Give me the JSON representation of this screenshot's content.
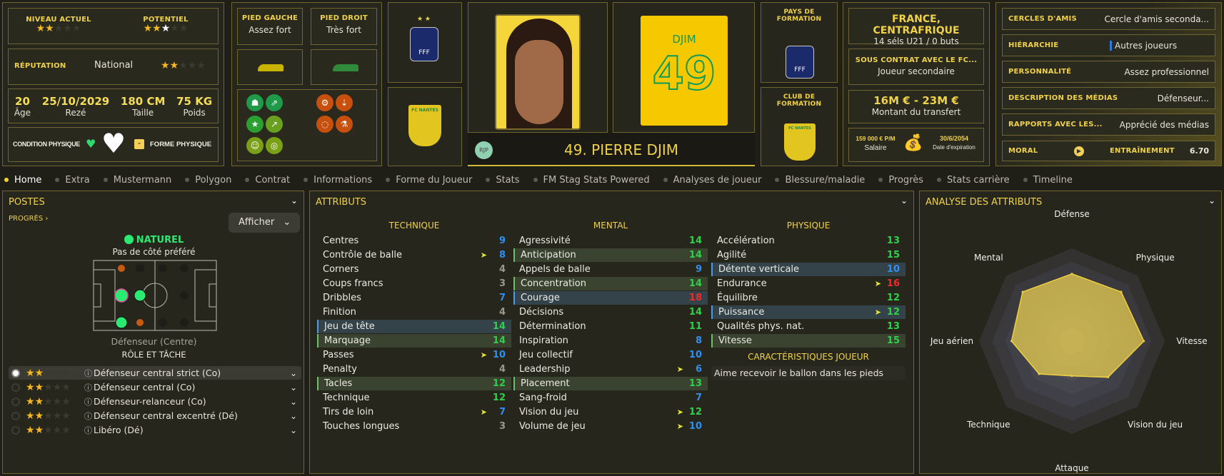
{
  "overview": {
    "current_ability_label": "NIVEAU ACTUEL",
    "current_ability_stars": 2,
    "potential_label": "POTENTIEL",
    "potential_stars": 2,
    "potential_stars_max": 3,
    "reputation_label": "RÉPUTATION",
    "reputation_value": "National",
    "reputation_stars": 1.5,
    "age": "20",
    "age_label": "Âge",
    "birth_date": "25/10/2029",
    "birth_place": "Rezé",
    "height": "180 CM",
    "height_label": "Taille",
    "weight": "75 KG",
    "weight_label": "Poids",
    "condition_label": "CONDITION PHYSIQUE",
    "form_label": "FORME PHYSIQUE"
  },
  "feet": {
    "left_label": "PIED GAUCHE",
    "left_value": "Assez fort",
    "right_label": "PIED DROIT",
    "right_value": "Très fort"
  },
  "traits": {
    "positive_icons": [
      "shield-icon",
      "arrows-icon",
      "star-icon",
      "trend-up-icon",
      "brain-icon",
      "target-icon"
    ],
    "negative_icons": [
      "gear-icon",
      "cone-down-icon",
      "cone-target-icon",
      "flask-icon"
    ]
  },
  "player": {
    "name": "49. PIERRE DJIM",
    "initials": "RJP",
    "shirt_name": "DJIM",
    "shirt_number": "49"
  },
  "formation": {
    "country_label": "PAYS DE FORMATION",
    "club_label": "CLUB DE FORMATION",
    "fff_text": "FFF",
    "club_text": "FC NANTES"
  },
  "nationality": {
    "countries": "FRANCE, CENTRAFRIQUE",
    "caps": "14 séls U21 / 0 buts",
    "contract_label": "SOUS CONTRAT AVEC LE FC...",
    "contract_role": "Joueur secondaire",
    "value": "16M € - 23M €",
    "value_label": "Montant du transfert",
    "wage": "159 000 € P/M",
    "wage_label": "Salaire",
    "expiry": "30/6/2054",
    "expiry_label": "Date d'expiration"
  },
  "personal": [
    {
      "label": "CERCLES D'AMIS",
      "value": "Cercle d'amis seconda..."
    },
    {
      "label": "HIÉRARCHIE",
      "value": "Autres joueurs"
    },
    {
      "label": "PERSONNALITÉ",
      "value": "Assez professionnel"
    },
    {
      "label": "DESCRIPTION DES MÉDIAS",
      "value": "Défenseur..."
    },
    {
      "label": "RAPPORTS AVEC LES...",
      "value": "Apprécié des médias"
    }
  ],
  "morale": {
    "label": "MORAL",
    "training_label": "ENTRAÎNEMENT",
    "training_value": "6.70"
  },
  "tabs": [
    "Home",
    "Extra",
    "Mustermann",
    "Polygon",
    "Contrat",
    "Informations",
    "Forme du Joueur",
    "Stats",
    "FM Stag Stats Powered",
    "Analyses de joueur",
    "Blessure/maladie",
    "Progrès",
    "Stats carrière",
    "Timeline"
  ],
  "positions": {
    "title": "POSTES",
    "progress_link": "PROGRÈS",
    "show_button": "Afficher",
    "natural_label": "NATUREL",
    "side": "Pas de côté préféré",
    "position_name": "Défenseur (Centre)",
    "roles_title": "RÔLE ET TÂCHE",
    "roles": [
      {
        "name": "Défenseur central strict (Co)",
        "stars": 2,
        "selected": true
      },
      {
        "name": "Défenseur central (Co)",
        "stars": 2
      },
      {
        "name": "Défenseur-relanceur (Co)",
        "stars": 2
      },
      {
        "name": "Défenseur central excentré (Dé)",
        "stars": 2
      },
      {
        "name": "Libéro (Dé)",
        "stars": 2
      }
    ]
  },
  "attributes": {
    "title": "ATTRIBUTS",
    "traits_title": "CARACTÉRISTIQUES JOUEUR",
    "traits": [
      "Aime recevoir le ballon dans les pieds"
    ],
    "columns": [
      {
        "title": "TECHNIQUE",
        "items": [
          {
            "n": "Centres",
            "v": 9
          },
          {
            "n": "Contrôle de balle",
            "v": 8,
            "arrow": true
          },
          {
            "n": "Corners",
            "v": 4
          },
          {
            "n": "Coups francs",
            "v": 3
          },
          {
            "n": "Dribbles",
            "v": 7
          },
          {
            "n": "Finition",
            "v": 4
          },
          {
            "n": "Jeu de tête",
            "v": 14,
            "hl": "blue"
          },
          {
            "n": "Marquage",
            "v": 14,
            "hl": "green"
          },
          {
            "n": "Passes",
            "v": 10,
            "arrow": true
          },
          {
            "n": "Penalty",
            "v": 4
          },
          {
            "n": "Tacles",
            "v": 12,
            "hl": "green"
          },
          {
            "n": "Technique",
            "v": 12
          },
          {
            "n": "Tirs de loin",
            "v": 7,
            "arrow": true
          },
          {
            "n": "Touches longues",
            "v": 3
          }
        ]
      },
      {
        "title": "MENTAL",
        "items": [
          {
            "n": "Agressivité",
            "v": 14
          },
          {
            "n": "Anticipation",
            "v": 14,
            "hl": "green"
          },
          {
            "n": "Appels de balle",
            "v": 9
          },
          {
            "n": "Concentration",
            "v": 14,
            "hl": "green"
          },
          {
            "n": "Courage",
            "v": 18,
            "hl": "blue"
          },
          {
            "n": "Décisions",
            "v": 14
          },
          {
            "n": "Détermination",
            "v": 11
          },
          {
            "n": "Inspiration",
            "v": 8
          },
          {
            "n": "Jeu collectif",
            "v": 10
          },
          {
            "n": "Leadership",
            "v": 6,
            "arrow": true
          },
          {
            "n": "Placement",
            "v": 13,
            "hl": "green"
          },
          {
            "n": "Sang-froid",
            "v": 7
          },
          {
            "n": "Vision du jeu",
            "v": 12,
            "arrow": true
          },
          {
            "n": "Volume de jeu",
            "v": 10,
            "arrow": true
          }
        ]
      },
      {
        "title": "PHYSIQUE",
        "items": [
          {
            "n": "Accélération",
            "v": 13
          },
          {
            "n": "Agilité",
            "v": 15
          },
          {
            "n": "Détente verticale",
            "v": 10,
            "hl": "blue"
          },
          {
            "n": "Endurance",
            "v": 16,
            "arrow": true
          },
          {
            "n": "Équilibre",
            "v": 12
          },
          {
            "n": "Puissance",
            "v": 12,
            "hl": "blue",
            "arrow": true
          },
          {
            "n": "Qualités phys. nat.",
            "v": 13
          },
          {
            "n": "Vitesse",
            "v": 15,
            "hl": "green"
          }
        ]
      }
    ]
  },
  "colors": {
    "low": "#9a9890",
    "mid": "#2f8ff0",
    "good": "#2fd04a",
    "high": "#f02a2a",
    "accent": "#f0d24a"
  },
  "analysis": {
    "title": "ANALYSE DES ATTRIBUTS",
    "chart_data": {
      "type": "radar",
      "axes": [
        "Défense",
        "Physique",
        "Vitesse",
        "Vision du jeu",
        "Attaque",
        "Technique",
        "Jeu aérien",
        "Mental"
      ],
      "values": [
        14.5,
        15,
        15.5,
        11,
        7.5,
        10,
        13,
        15
      ],
      "range": [
        0,
        20
      ]
    }
  }
}
